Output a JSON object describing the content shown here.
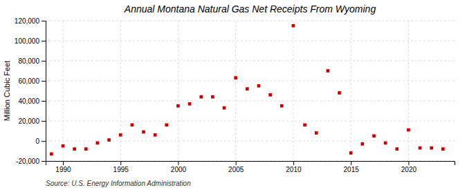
{
  "chart_data": {
    "type": "scatter",
    "title": "Annual Montana Natural Gas Net Receipts From Wyoming",
    "ylabel": "Million Cubic Feet",
    "source": "Source: U.S. Energy Information Administration",
    "x": [
      1989,
      1990,
      1991,
      1992,
      1993,
      1994,
      1995,
      1996,
      1997,
      1998,
      1999,
      2000,
      2001,
      2002,
      2003,
      2004,
      2005,
      2006,
      2007,
      2008,
      2009,
      2010,
      2011,
      2012,
      2013,
      2014,
      2015,
      2016,
      2017,
      2018,
      2019,
      2020,
      2021,
      2022,
      2023
    ],
    "values": [
      -13000,
      -5000,
      -8000,
      -8000,
      -2000,
      1000,
      6000,
      16000,
      9000,
      6000,
      16000,
      35000,
      37000,
      44000,
      44000,
      33000,
      63000,
      52000,
      55000,
      46000,
      35000,
      115000,
      16000,
      8000,
      70000,
      48000,
      -12000,
      -3000,
      5000,
      -2000,
      -8000,
      11000,
      -7000,
      -7000,
      -8000
    ],
    "color": "#cc0000",
    "marker": "square",
    "xlim": [
      1988.5,
      2024
    ],
    "xticks": [
      1990,
      1995,
      2000,
      2005,
      2010,
      2015,
      2020
    ],
    "ylim": [
      -20000,
      120000
    ],
    "yticks": [
      {
        "value": -20000,
        "label": "-20,000"
      },
      0,
      {
        "value": 20000,
        "label": "20,000"
      },
      {
        "value": 40000,
        "label": "40,000"
      },
      {
        "value": 60000,
        "label": "60,000"
      },
      {
        "value": 80000,
        "label": "80,000"
      },
      {
        "value": 100000,
        "label": "100,000"
      },
      {
        "value": 120000,
        "label": "120,000"
      }
    ],
    "grid": true
  }
}
